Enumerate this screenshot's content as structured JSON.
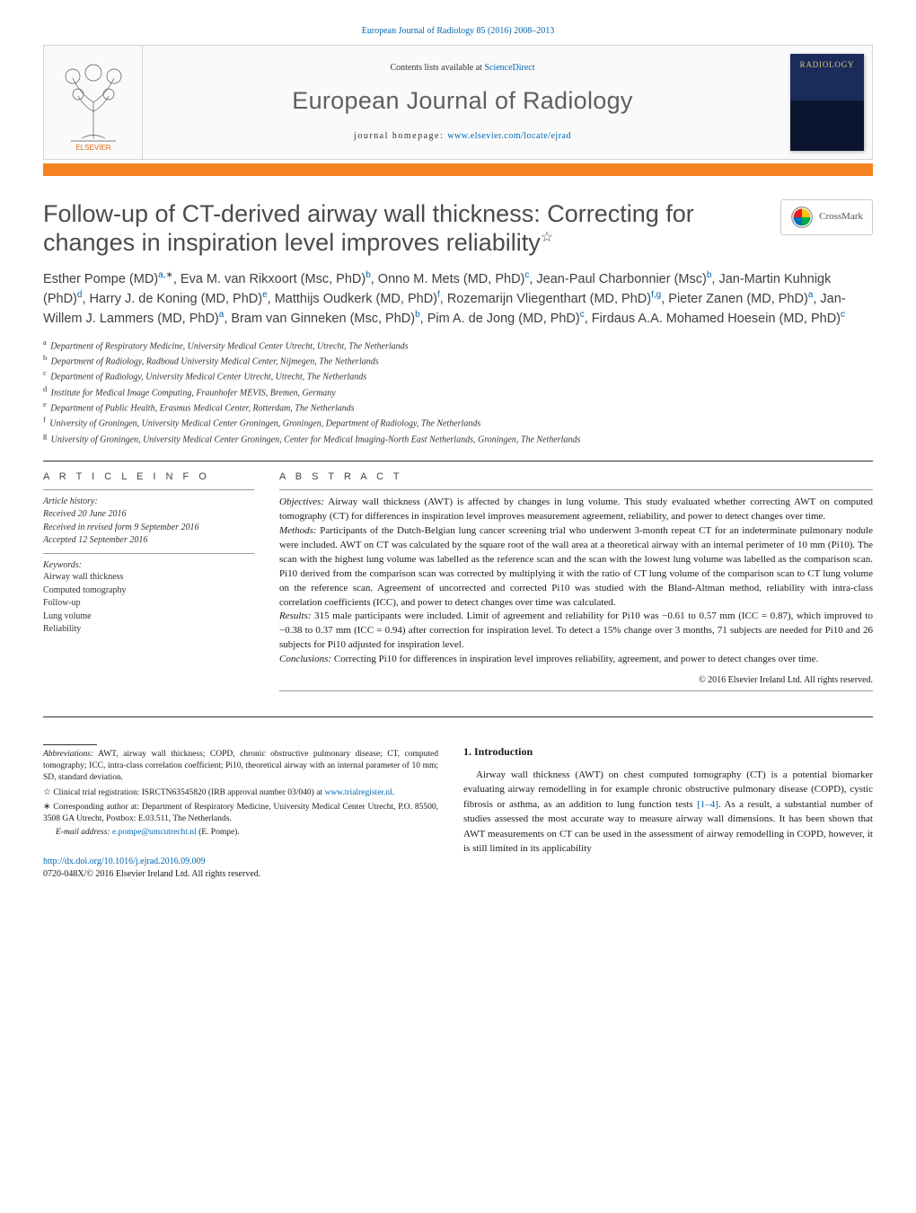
{
  "header": {
    "top_link": "European Journal of Radiology 85 (2016) 2008–2013",
    "contents_prefix": "Contents lists available at ",
    "contents_link": "ScienceDirect",
    "journal_name": "European Journal of Radiology",
    "home_prefix": "journal homepage: ",
    "home_link": "www.elsevier.com/locate/ejrad",
    "cover_text": "RADIOLOGY"
  },
  "colors": {
    "link": "#0066b3",
    "accent_bar": "#f58220",
    "title_gray": "#4b4b4b",
    "cover_top": "#1a2b5c",
    "cover_bottom": "#0c1530",
    "cover_title": "#e4c770",
    "text": "#1a1a1a"
  },
  "typography": {
    "journal_name_pt": 27,
    "article_title_pt": 27,
    "author_pt": 14.5,
    "body_pt": 11,
    "footnote_pt": 9.5,
    "affiliation_pt": 10
  },
  "crossmark": "CrossMark",
  "article": {
    "title_line1": "Follow-up of CT-derived airway wall thickness: Correcting for",
    "title_line2": "changes in inspiration level improves reliability",
    "title_star": "☆"
  },
  "authors_html": "Esther Pompe (MD)<sup>a,</sup><sup class='star'>∗</sup>, Eva M. van Rikxoort (Msc, PhD)<sup>b</sup>, Onno M. Mets (MD, PhD)<sup>c</sup>, Jean-Paul Charbonnier (Msc)<sup>b</sup>, Jan-Martin Kuhnigk (PhD)<sup>d</sup>, Harry J. de Koning (MD, PhD)<sup>e</sup>, Matthijs Oudkerk (MD, PhD)<sup>f</sup>, Rozemarijn Vliegenthart (MD, PhD)<sup>f,g</sup>, Pieter Zanen (MD, PhD)<sup>a</sup>, Jan-Willem J. Lammers (MD, PhD)<sup>a</sup>, Bram van Ginneken (Msc, PhD)<sup>b</sup>, Pim A. de Jong (MD, PhD)<sup>c</sup>, Firdaus A.A. Mohamed Hoesein (MD, PhD)<sup>c</sup>",
  "affiliations": [
    {
      "sup": "a",
      "text": "Department of Respiratory Medicine, University Medical Center Utrecht, Utrecht, The Netherlands"
    },
    {
      "sup": "b",
      "text": "Department of Radiology, Radboud University Medical Center, Nijmegen, The Netherlands"
    },
    {
      "sup": "c",
      "text": "Department of Radiology, University Medical Center Utrecht, Utrecht, The Netherlands"
    },
    {
      "sup": "d",
      "text": "Institute for Medical Image Computing, Fraunhofer MEVIS, Bremen, Germany"
    },
    {
      "sup": "e",
      "text": "Department of Public Health, Erasmus Medical Center, Rotterdam, The Netherlands"
    },
    {
      "sup": "f",
      "text": "University of Groningen, University Medical Center Groningen, Groningen, Department of Radiology, The Netherlands"
    },
    {
      "sup": "g",
      "text": "University of Groningen, University Medical Center Groningen, Center for Medical Imaging-North East Netherlands, Groningen, The Netherlands"
    }
  ],
  "info_heads": {
    "article_info": "A R T I C L E   I N F O",
    "abstract": "A B S T R A C T"
  },
  "article_info": {
    "history_head": "Article history:",
    "received": "Received 20 June 2016",
    "revised": "Received in revised form 9 September 2016",
    "accepted": "Accepted 12 September 2016",
    "keywords_head": "Keywords:",
    "keywords": [
      "Airway wall thickness",
      "Computed tomography",
      "Follow-up",
      "Lung volume",
      "Reliability"
    ]
  },
  "abstract": {
    "objectives_label": "Objectives:",
    "objectives": " Airway wall thickness (AWT) is affected by changes in lung volume. This study evaluated whether correcting AWT on computed tomography (CT) for differences in inspiration level improves measurement agreement, reliability, and power to detect changes over time.",
    "methods_label": "Methods:",
    "methods": " Participants of the Dutch-Belgian lung cancer screening trial who underwent 3-month repeat CT for an indeterminate pulmonary nodule were included. AWT on CT was calculated by the square root of the wall area at a theoretical airway with an internal perimeter of 10 mm (Pi10). The scan with the highest lung volume was labelled as the reference scan and the scan with the lowest lung volume was labelled as the comparison scan. Pi10 derived from the comparison scan was corrected by multiplying it with the ratio of CT lung volume of the comparison scan to CT lung volume on the reference scan. Agreement of uncorrected and corrected Pi10 was studied with the Bland-Altman method, reliability with intra-class correlation coefficients (ICC), and power to detect changes over time was calculated.",
    "results_label": "Results:",
    "results": " 315 male participants were included. Limit of agreement and reliability for Pi10 was −0.61 to 0.57 mm (ICC = 0.87), which improved to −0.38 to 0.37 mm (ICC = 0.94) after correction for inspiration level. To detect a 15% change over 3 months, 71 subjects are needed for Pi10 and 26 subjects for Pi10 adjusted for inspiration level.",
    "conclusions_label": "Conclusions:",
    "conclusions": " Correcting Pi10 for differences in inspiration level improves reliability, agreement, and power to detect changes over time.",
    "copyright": "© 2016 Elsevier Ireland Ltd. All rights reserved."
  },
  "section1": {
    "heading": "1. Introduction",
    "para": "Airway wall thickness (AWT) on chest computed tomography (CT) is a potential biomarker evaluating airway remodelling in for example chronic obstructive pulmonary disease (COPD), cystic fibrosis or asthma, as an addition to lung function tests [1–4]. As a result, a substantial number of studies assessed the most accurate way to measure airway wall dimensions. It has been shown that AWT measurements on CT can be used in the assessment of airway remodelling in COPD, however, it is still limited in its applicability",
    "cite_link": "[1–4]"
  },
  "footnotes": {
    "abbrev_label": "Abbreviations:",
    "abbrev": " AWT, airway wall thickness; COPD, chronic obstructive pulmonary disease; CT, computed tomography; ICC, intra-class correlation coefficient; Pi10, theoretical airway with an internal parameter of 10 mm; SD, standard deviation.",
    "trial_star": "☆",
    "trial": " Clinical trial registration: ISRCTN63545820 (IRB approval number 03/040) at ",
    "trial_link": "www.trialregister.nl",
    "corr_star": "∗",
    "corr": " Corresponding author at: Department of Respiratory Medicine, University Medical Center Utrecht, P.O. 85500, 3508 GA Utrecht, Postbox: E.03.511, The Netherlands.",
    "email_label": "E-mail address: ",
    "email": "e.pompe@umcutrecht.nl",
    "email_suffix": " (E. Pompe)."
  },
  "doi": {
    "link": "http://dx.doi.org/10.1016/j.ejrad.2016.09.009",
    "issn_line": "0720-048X/© 2016 Elsevier Ireland Ltd. All rights reserved."
  }
}
